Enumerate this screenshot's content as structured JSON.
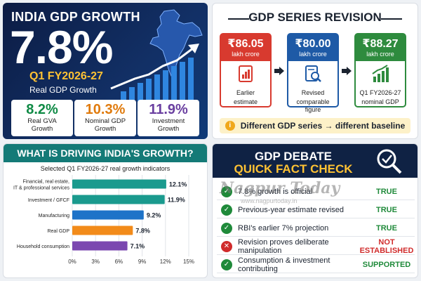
{
  "panel1": {
    "title": "INDIA GDP GROWTH",
    "headline": "7.8%",
    "quarter": "Q1 FY2026-27",
    "subtitle": "Real GDP Growth",
    "stats": [
      {
        "value": "8.2%",
        "label1": "Real GVA",
        "label2": "Growth",
        "color": "#0f8a45"
      },
      {
        "value": "10.3%",
        "label1": "Nominal GDP",
        "label2": "Growth",
        "color": "#e07b0e"
      },
      {
        "value": "11.9%",
        "label1": "Investment",
        "label2": "Growth",
        "color": "#6a3fa0"
      }
    ]
  },
  "panel2": {
    "title": "GDP SERIES REVISION",
    "boxes": [
      {
        "value": "₹86.05",
        "unit": "lakh crore",
        "caption1": "Earlier",
        "caption2": "estimate",
        "color": "#d83a2f",
        "icon": "report-icon"
      },
      {
        "value": "₹80.00",
        "unit": "lakh crore",
        "caption1": "Revised",
        "caption2": "comparable figure",
        "color": "#1e5aa6",
        "icon": "search-doc-icon"
      },
      {
        "value": "₹88.27",
        "unit": "lakh crore",
        "caption1": "Q1 FY2026-27",
        "caption2": "nominal GDP",
        "color": "#2e8b3e",
        "icon": "bar-growth-icon"
      }
    ],
    "note": "Different GDP series → different baseline"
  },
  "panel3": {
    "title": "WHAT IS DRIVING INDIA'S GROWTH?",
    "subtitle": "Selected Q1 FY2026-27 real growth indicators"
  },
  "chart_data": {
    "type": "bar",
    "orientation": "horizontal",
    "title": "WHAT IS DRIVING INDIA'S GROWTH?",
    "subtitle": "Selected Q1 FY2026-27 real growth indicators",
    "categories": [
      [
        "Financial, real estate,",
        "IT & professional services"
      ],
      [
        "Investment / GFCF"
      ],
      [
        "Manufacturing"
      ],
      [
        "Real GDP"
      ],
      [
        "Household consumption"
      ]
    ],
    "values": [
      12.1,
      11.9,
      9.2,
      7.8,
      7.1
    ],
    "value_labels": [
      "12.1%",
      "11.9%",
      "9.2%",
      "7.8%",
      "7.1%"
    ],
    "colors": [
      "#1a9a8e",
      "#1a9a8e",
      "#1e73c8",
      "#f28b1a",
      "#7b48b0"
    ],
    "xlim": [
      0,
      15
    ],
    "xticks": [
      "0%",
      "3%",
      "6%",
      "9%",
      "12%",
      "15%"
    ],
    "grid": true
  },
  "panel4": {
    "title1": "GDP DEBATE",
    "title2": "QUICK FACT CHECK",
    "watermark": "Nagpur Today",
    "watermark_url": "www.nagpurtoday.in",
    "rows": [
      {
        "text": "7.8% growth is official",
        "status": "TRUE",
        "kind": "check"
      },
      {
        "text": "Previous-year estimate revised",
        "status": "TRUE",
        "kind": "check"
      },
      {
        "text": "RBI's earlier 7% projection",
        "status": "TRUE",
        "kind": "check"
      },
      {
        "text": "Revision proves deliberate manipulation",
        "status": "NOT ESTABLISHED",
        "kind": "cross"
      },
      {
        "text": "Consumption & investment contributing",
        "status": "SUPPORTED",
        "kind": "check"
      }
    ],
    "colors": {
      "true": "#1f8a3a",
      "false": "#d02b2b"
    }
  }
}
